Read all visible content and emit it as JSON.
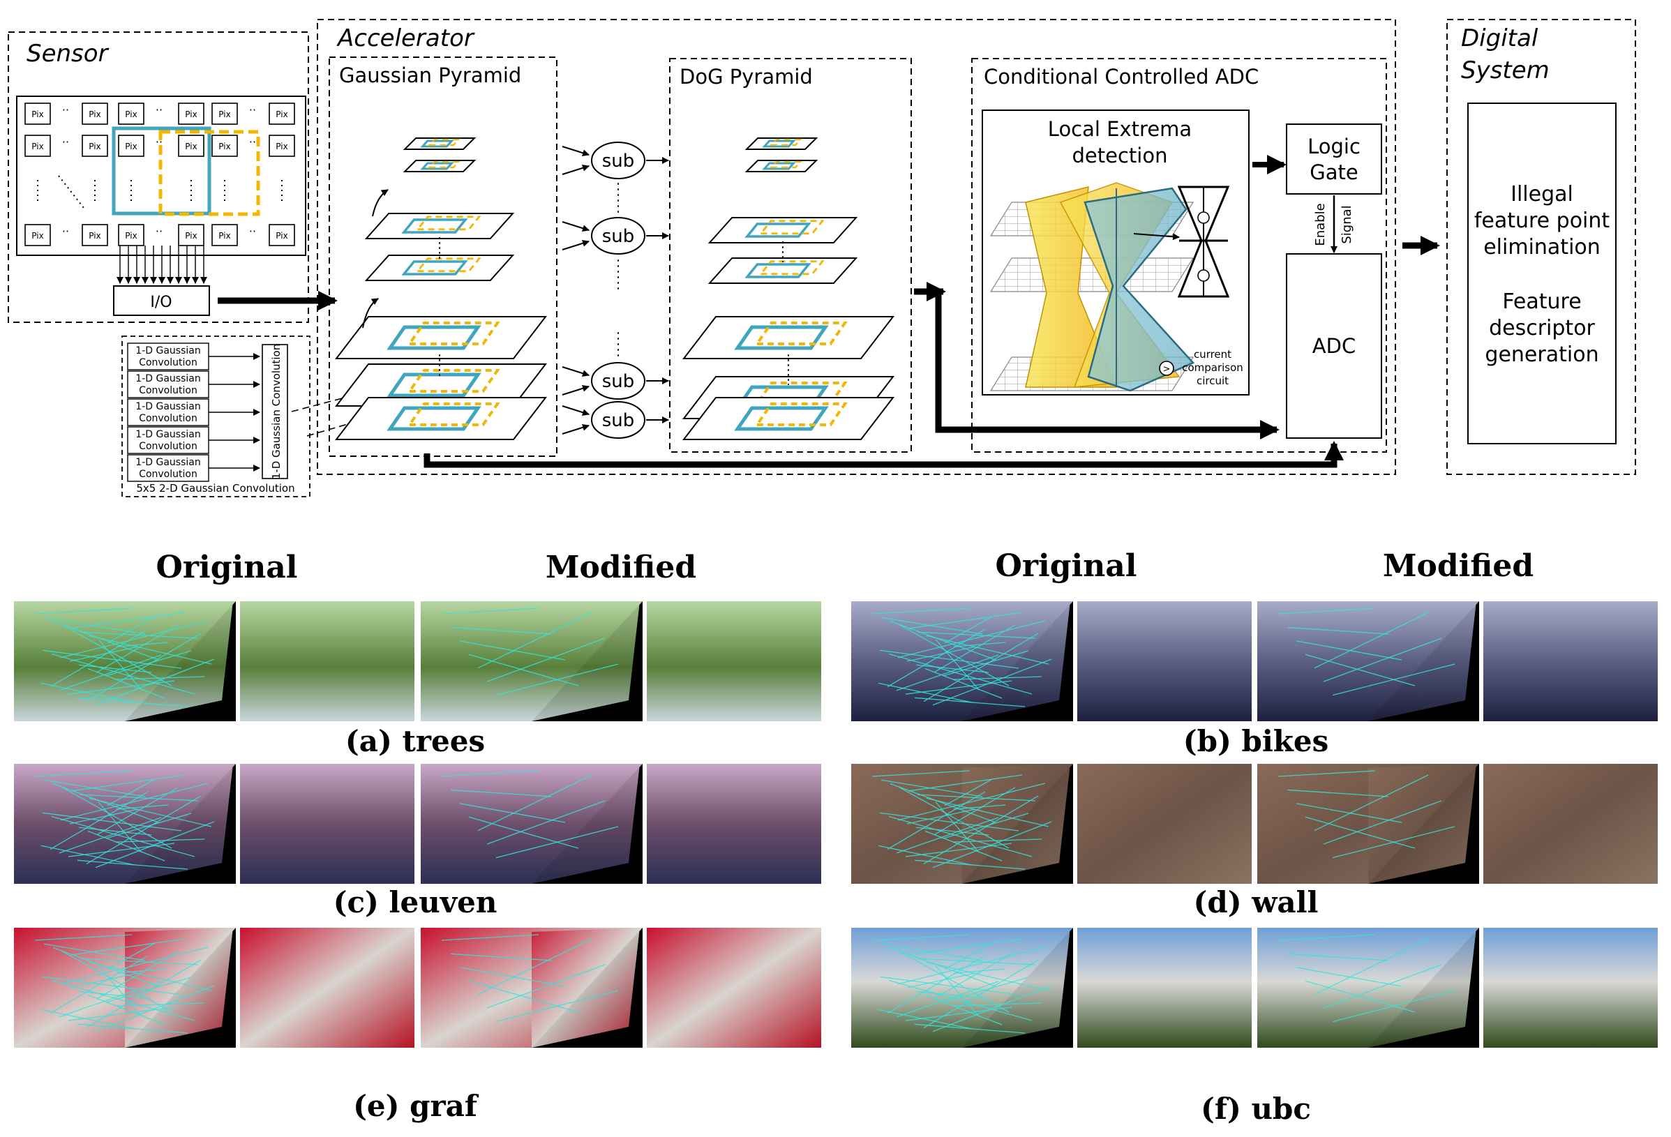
{
  "diagram": {
    "sensor": {
      "title": "Sensor",
      "pixel_label": "Pix",
      "io_label": "I/O",
      "gauss_1d_label_a": "1-D Gaussian",
      "gauss_1d_label_b": "Convolution",
      "gauss_1d_vertical": "1-D Gaussian Convolution",
      "gauss_2d_caption": "5x5 2-D Gaussian Convolution"
    },
    "accelerator": {
      "title": "Accelerator",
      "gaussian_pyramid": "Gaussian Pyramid",
      "dog_pyramid": "DoG Pyramid",
      "sub_label": "sub",
      "adc_section": {
        "title": "Conditional Controlled ADC",
        "local_extrema_line1": "Local Extrema",
        "local_extrema_line2": "detection",
        "comparison_symbol": ">",
        "comparison_line1": "current",
        "comparison_line2": "comparison",
        "comparison_line3": "circuit",
        "logic_gate_line1": "Logic",
        "logic_gate_line2": "Gate",
        "enable_signal_line1": "Enable",
        "enable_signal_line2": "Signal",
        "adc_label": "ADC"
      }
    },
    "digital_system": {
      "title_line1": "Digital",
      "title_line2": "System",
      "task1_line1": "Illegal",
      "task1_line2": "feature point",
      "task1_line3": "elimination",
      "task2_line1": "Feature",
      "task2_line2": "descriptor",
      "task2_line3": "generation"
    }
  },
  "results": {
    "header_original": "Original",
    "header_modified": "Modified",
    "captions": [
      "(a) trees",
      "(b) bikes",
      "(c) leuven",
      "(d) wall",
      "(e) graf",
      "(f) ubc"
    ]
  },
  "colors": {
    "teal": "#3fa6bd",
    "dashed_yellow": "#f2b705",
    "line_match": "#35e3dc",
    "ink": "#000000"
  }
}
